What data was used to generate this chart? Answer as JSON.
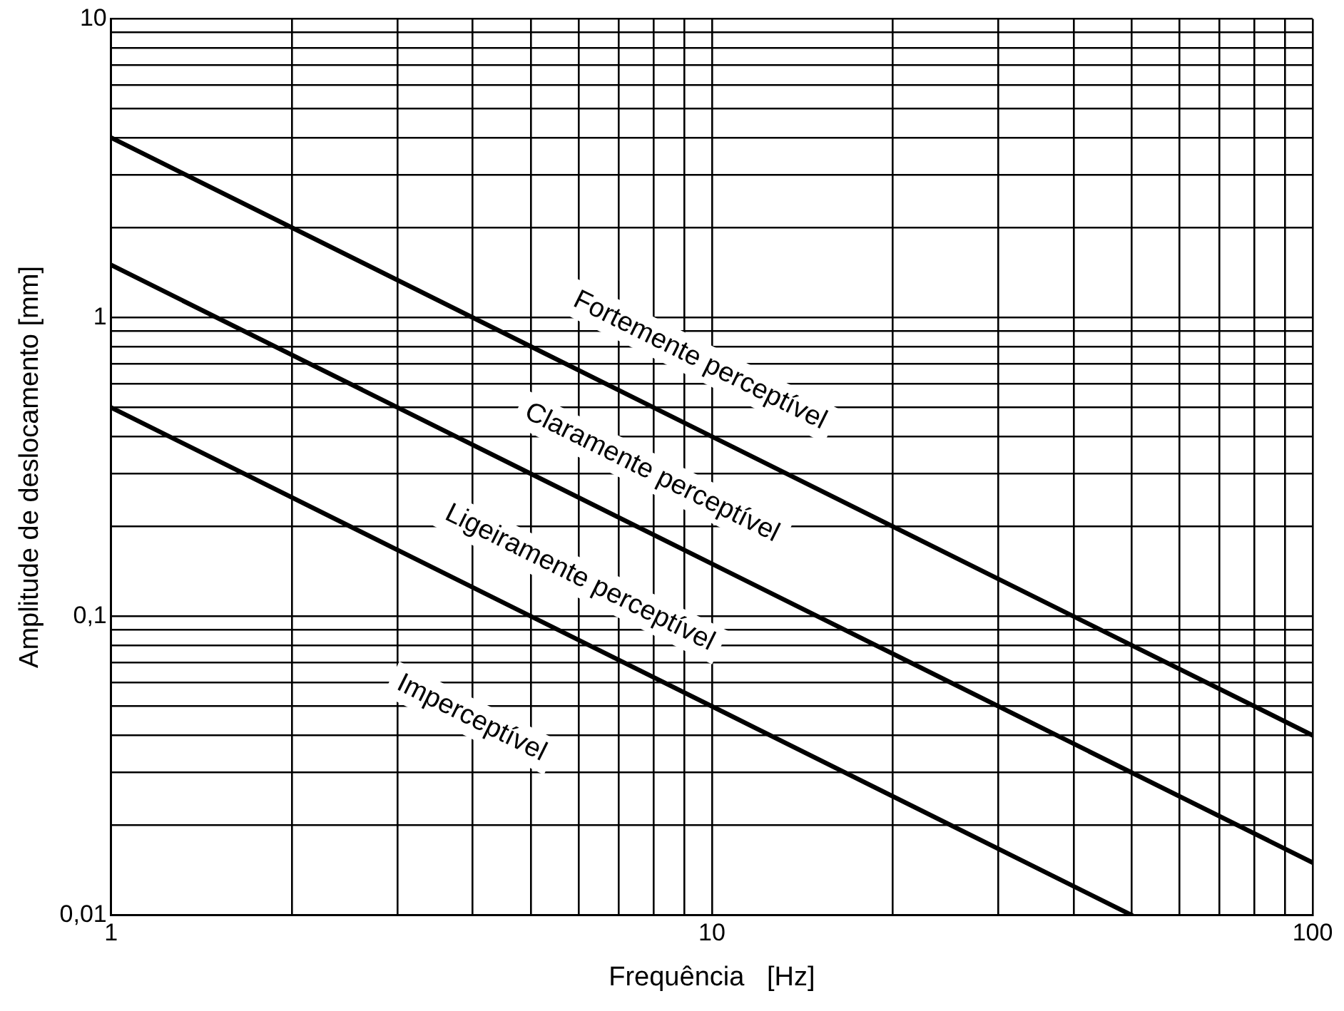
{
  "chart_data": {
    "type": "line",
    "xlabel": "Frequência   [Hz]",
    "ylabel": "Amplitude de deslocamento [mm]",
    "log": "xy",
    "grid": true,
    "legend": false,
    "marker": "none",
    "line_style": "solid",
    "xlim": [
      1,
      100
    ],
    "ylim": [
      0.01,
      10
    ],
    "xticks": [
      {
        "value": 1,
        "label": "1"
      },
      {
        "value": 2,
        "label": null
      },
      {
        "value": 3,
        "label": null
      },
      {
        "value": 4,
        "label": null
      },
      {
        "value": 5,
        "label": null
      },
      {
        "value": 6,
        "label": null
      },
      {
        "value": 7,
        "label": null
      },
      {
        "value": 8,
        "label": null
      },
      {
        "value": 9,
        "label": null
      },
      {
        "value": 10,
        "label": "10"
      },
      {
        "value": 20,
        "label": null
      },
      {
        "value": 30,
        "label": null
      },
      {
        "value": 40,
        "label": null
      },
      {
        "value": 50,
        "label": null
      },
      {
        "value": 60,
        "label": null
      },
      {
        "value": 70,
        "label": null
      },
      {
        "value": 80,
        "label": null
      },
      {
        "value": 90,
        "label": null
      },
      {
        "value": 100,
        "label": "100"
      }
    ],
    "yticks": [
      {
        "value": 0.01,
        "label": "0,01"
      },
      {
        "value": 0.02,
        "label": null
      },
      {
        "value": 0.03,
        "label": null
      },
      {
        "value": 0.04,
        "label": null
      },
      {
        "value": 0.05,
        "label": null
      },
      {
        "value": 0.06,
        "label": null
      },
      {
        "value": 0.07,
        "label": null
      },
      {
        "value": 0.08,
        "label": null
      },
      {
        "value": 0.09,
        "label": null
      },
      {
        "value": 0.1,
        "label": "0,1"
      },
      {
        "value": 0.2,
        "label": null
      },
      {
        "value": 0.3,
        "label": null
      },
      {
        "value": 0.4,
        "label": null
      },
      {
        "value": 0.5,
        "label": null
      },
      {
        "value": 0.6,
        "label": null
      },
      {
        "value": 0.7,
        "label": null
      },
      {
        "value": 0.8,
        "label": null
      },
      {
        "value": 0.9,
        "label": null
      },
      {
        "value": 1,
        "label": "1"
      },
      {
        "value": 2,
        "label": null
      },
      {
        "value": 3,
        "label": null
      },
      {
        "value": 4,
        "label": null
      },
      {
        "value": 5,
        "label": null
      },
      {
        "value": 6,
        "label": null
      },
      {
        "value": 7,
        "label": null
      },
      {
        "value": 8,
        "label": null
      },
      {
        "value": 9,
        "label": null
      },
      {
        "value": 10,
        "label": "10"
      }
    ],
    "series": [
      {
        "color": "#000000",
        "x": [
          1,
          100
        ],
        "values": [
          4,
          0.04
        ]
      },
      {
        "color": "#000000",
        "x": [
          1,
          100
        ],
        "values": [
          1.5,
          0.015
        ]
      },
      {
        "color": "#000000",
        "x": [
          1,
          50
        ],
        "values": [
          0.5,
          0.01
        ]
      }
    ],
    "annotations": [
      "Fortemente perceptível",
      "Claramente perceptível",
      "Ligeiramente perceptível",
      "Imperceptível"
    ]
  }
}
